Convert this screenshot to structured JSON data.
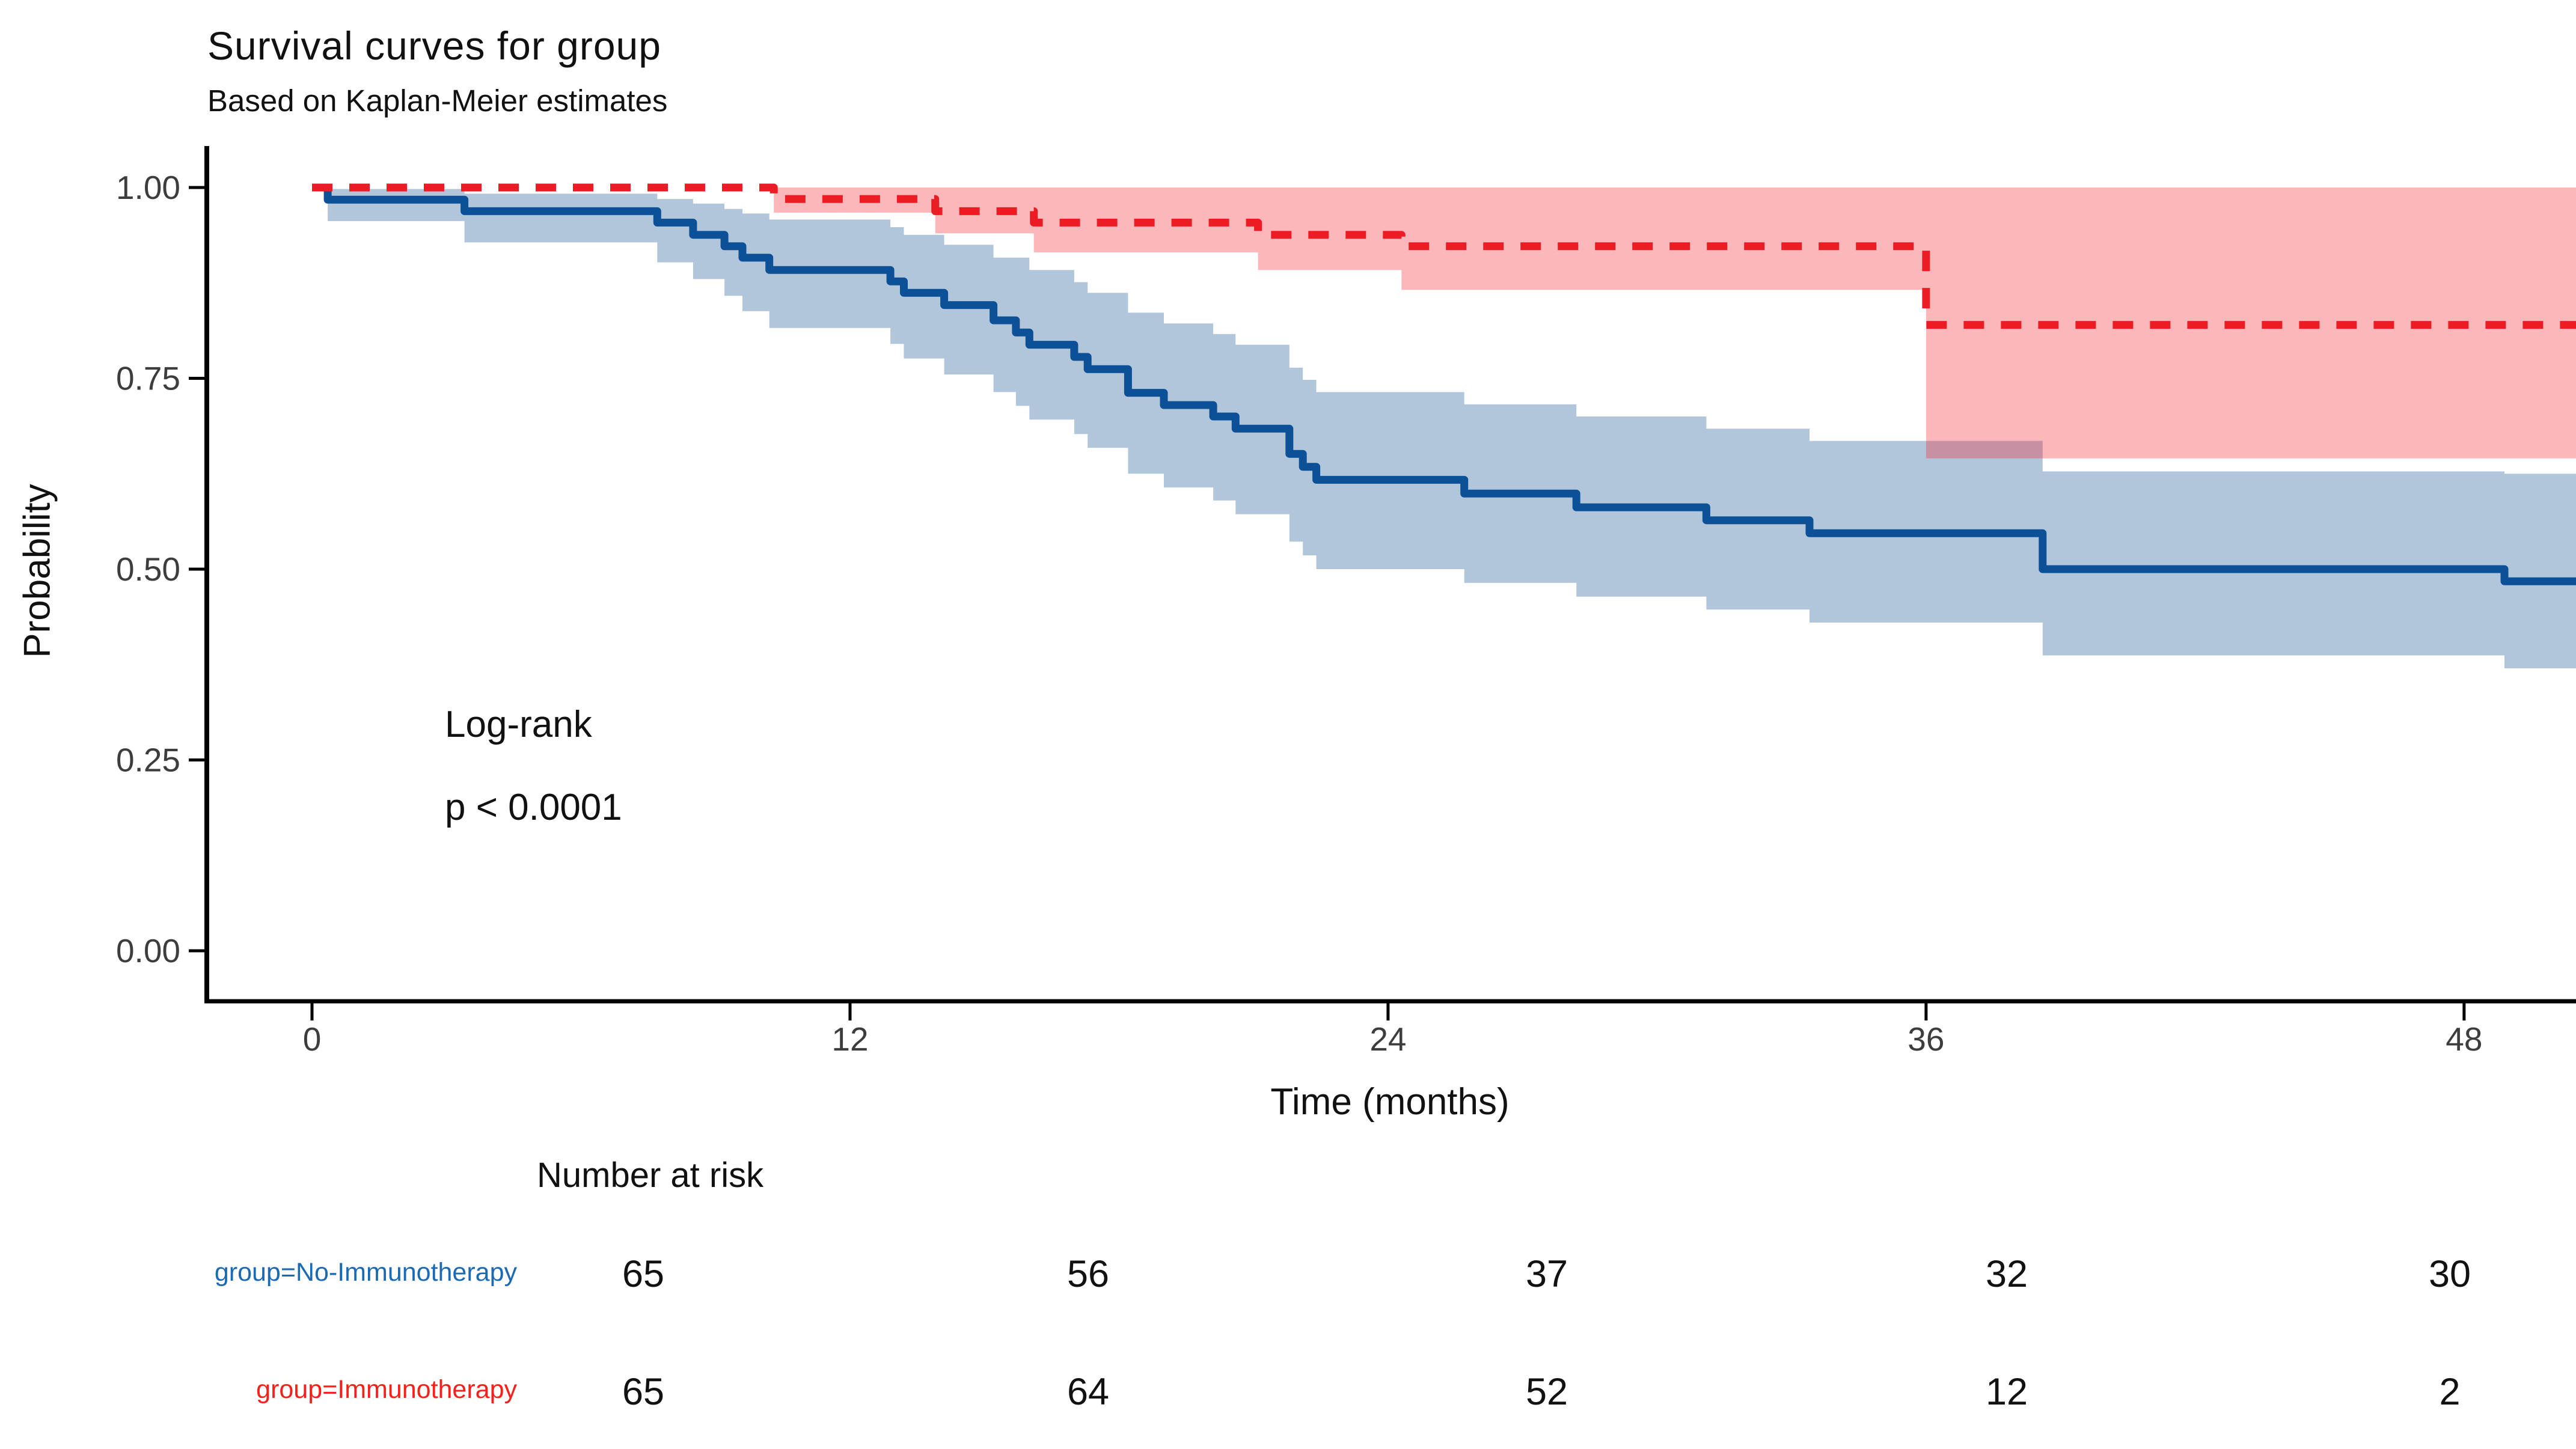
{
  "chart_data": {
    "type": "line",
    "subtype": "kaplan-meier-step-curves-with-confidence-bands",
    "title": "Survival curves for group",
    "subtitle": "Based on Kaplan-Meier estimates",
    "xlabel": "Time (months)",
    "ylabel": "Probability",
    "xlim": [
      0,
      50.5
    ],
    "ylim": [
      0,
      1
    ],
    "grid": false,
    "legend_position": "none",
    "x_ticks": [
      {
        "label": "0",
        "value": 0
      },
      {
        "label": "12",
        "value": 12
      },
      {
        "label": "24",
        "value": 24
      },
      {
        "label": "36",
        "value": 36
      },
      {
        "label": "48",
        "value": 48
      }
    ],
    "y_ticks": [
      {
        "label": "1.00",
        "value": 1.0
      },
      {
        "label": "0.75",
        "value": 0.75
      },
      {
        "label": "0.50",
        "value": 0.5
      },
      {
        "label": "0.25",
        "value": 0.25
      },
      {
        "label": "0.00",
        "value": 0.0
      }
    ],
    "annotation": {
      "line1": "Log-rank",
      "line2": "p < 0.0001"
    },
    "series": [
      {
        "name": "No-Immunotherapy",
        "color": "#0c5097",
        "line_style": "solid",
        "band_color": "rgba(28,88,150,0.34)",
        "steps": [
          [
            0,
            1.0
          ],
          [
            0.35,
            0.984
          ],
          [
            3.4,
            0.969
          ],
          [
            7.7,
            0.954
          ],
          [
            8.5,
            0.938
          ],
          [
            9.2,
            0.923
          ],
          [
            9.6,
            0.908
          ],
          [
            10.2,
            0.892
          ],
          [
            12.9,
            0.877
          ],
          [
            13.2,
            0.862
          ],
          [
            14.1,
            0.846
          ],
          [
            15.2,
            0.826
          ],
          [
            15.7,
            0.81
          ],
          [
            16.0,
            0.794
          ],
          [
            17.0,
            0.778
          ],
          [
            17.3,
            0.762
          ],
          [
            18.2,
            0.731
          ],
          [
            19.0,
            0.715
          ],
          [
            20.1,
            0.7
          ],
          [
            20.6,
            0.684
          ],
          [
            21.8,
            0.651
          ],
          [
            22.1,
            0.634
          ],
          [
            22.4,
            0.617
          ],
          [
            25.7,
            0.599
          ],
          [
            28.2,
            0.581
          ],
          [
            31.1,
            0.564
          ],
          [
            33.4,
            0.547
          ],
          [
            38.6,
            0.5
          ],
          [
            48.9,
            0.484
          ]
        ],
        "ci_upper": [
          [
            0,
            1.0
          ],
          [
            0.35,
            0.998
          ],
          [
            3.4,
            0.992
          ],
          [
            7.7,
            0.985
          ],
          [
            8.5,
            0.979
          ],
          [
            9.2,
            0.972
          ],
          [
            9.6,
            0.966
          ],
          [
            10.2,
            0.958
          ],
          [
            12.9,
            0.948
          ],
          [
            13.2,
            0.938
          ],
          [
            14.1,
            0.925
          ],
          [
            15.2,
            0.908
          ],
          [
            16.0,
            0.892
          ],
          [
            17.0,
            0.876
          ],
          [
            17.3,
            0.862
          ],
          [
            18.2,
            0.836
          ],
          [
            19.0,
            0.822
          ],
          [
            20.1,
            0.808
          ],
          [
            20.6,
            0.794
          ],
          [
            21.8,
            0.764
          ],
          [
            22.1,
            0.748
          ],
          [
            22.4,
            0.732
          ],
          [
            25.7,
            0.716
          ],
          [
            28.2,
            0.7
          ],
          [
            31.1,
            0.684
          ],
          [
            33.4,
            0.668
          ],
          [
            38.6,
            0.628
          ],
          [
            48.9,
            0.625
          ]
        ],
        "ci_lower": [
          [
            0,
            1.0
          ],
          [
            0.35,
            0.956
          ],
          [
            3.4,
            0.928
          ],
          [
            7.7,
            0.902
          ],
          [
            8.5,
            0.88
          ],
          [
            9.2,
            0.858
          ],
          [
            9.6,
            0.838
          ],
          [
            10.2,
            0.816
          ],
          [
            12.9,
            0.795
          ],
          [
            13.2,
            0.776
          ],
          [
            14.1,
            0.755
          ],
          [
            15.2,
            0.732
          ],
          [
            15.7,
            0.714
          ],
          [
            16.0,
            0.696
          ],
          [
            17.0,
            0.677
          ],
          [
            17.3,
            0.659
          ],
          [
            18.2,
            0.625
          ],
          [
            19.0,
            0.607
          ],
          [
            20.1,
            0.59
          ],
          [
            20.6,
            0.572
          ],
          [
            21.8,
            0.536
          ],
          [
            22.1,
            0.518
          ],
          [
            22.4,
            0.5
          ],
          [
            25.7,
            0.482
          ],
          [
            28.2,
            0.464
          ],
          [
            31.1,
            0.447
          ],
          [
            33.4,
            0.43
          ],
          [
            38.6,
            0.387
          ],
          [
            48.9,
            0.37
          ]
        ]
      },
      {
        "name": "Immunotherapy",
        "color": "#ec1c24",
        "line_style": "dashed",
        "band_color": "rgba(246,36,48,0.33)",
        "steps": [
          [
            0,
            1.0
          ],
          [
            10.3,
            0.985
          ],
          [
            13.9,
            0.969
          ],
          [
            16.1,
            0.954
          ],
          [
            21.1,
            0.938
          ],
          [
            24.3,
            0.923
          ],
          [
            36.0,
            0.82
          ]
        ],
        "ci_upper": [
          [
            0,
            1.0
          ],
          [
            10.3,
            1.0
          ],
          [
            36.0,
            1.0
          ]
        ],
        "ci_lower": [
          [
            0,
            1.0
          ],
          [
            10.3,
            0.967
          ],
          [
            13.9,
            0.94
          ],
          [
            16.1,
            0.915
          ],
          [
            21.1,
            0.892
          ],
          [
            24.3,
            0.866
          ],
          [
            36.0,
            0.645
          ]
        ]
      }
    ]
  },
  "risk_table": {
    "header": "Number at risk",
    "times": [
      0,
      12,
      24,
      36,
      48
    ],
    "rows": [
      {
        "label": "group=No-Immunotherapy",
        "color": "#1b6ab3",
        "values": [
          "65",
          "56",
          "37",
          "32",
          "30"
        ]
      },
      {
        "label": "group=Immunotherapy",
        "color": "#f8201a",
        "values": [
          "65",
          "64",
          "52",
          "12",
          "2"
        ]
      }
    ]
  }
}
